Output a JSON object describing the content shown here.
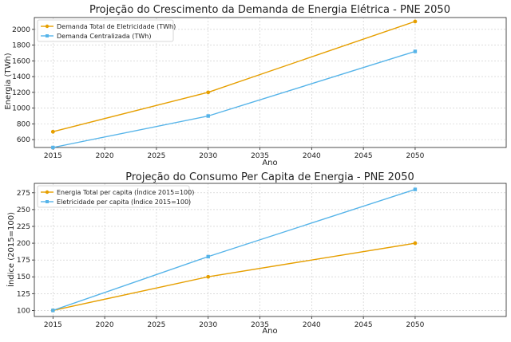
{
  "chart_data": [
    {
      "type": "line",
      "title": "Projeção do Crescimento da Demanda de Energia Elétrica - PNE 2050",
      "xlabel": "Ano",
      "ylabel": "Energia (TWh)",
      "xlim": [
        2013.2,
        2058.8
      ],
      "ylim": [
        500,
        2150
      ],
      "xticks": [
        2015,
        2020,
        2025,
        2030,
        2035,
        2040,
        2045,
        2050
      ],
      "yticks": [
        600,
        800,
        1000,
        1200,
        1400,
        1600,
        1800,
        2000
      ],
      "grid": true,
      "legend_position": "upper-left",
      "series": [
        {
          "name": "Demanda Total de Eletricidade (TWh)",
          "color": "#E69F00",
          "marker": "circle",
          "x": [
            2015,
            2030,
            2050
          ],
          "y": [
            700,
            1200,
            2100
          ]
        },
        {
          "name": "Demanda Centralizada (TWh)",
          "color": "#56B4E9",
          "marker": "square",
          "x": [
            2015,
            2030,
            2050
          ],
          "y": [
            500,
            900,
            1720
          ]
        }
      ]
    },
    {
      "type": "line",
      "title": "Projeção do Consumo Per Capita de Energia - PNE 2050",
      "xlabel": "Ano",
      "ylabel": "Índice (2015=100)",
      "xlim": [
        2013.2,
        2058.8
      ],
      "ylim": [
        91,
        289
      ],
      "xticks": [
        2015,
        2020,
        2025,
        2030,
        2035,
        2040,
        2045,
        2050
      ],
      "yticks": [
        100,
        125,
        150,
        175,
        200,
        225,
        250,
        275
      ],
      "grid": true,
      "legend_position": "upper-left",
      "series": [
        {
          "name": "Energia Total per capita (Índice 2015=100)",
          "color": "#E69F00",
          "marker": "circle",
          "x": [
            2015,
            2030,
            2050
          ],
          "y": [
            100,
            150,
            200
          ]
        },
        {
          "name": "Eletricidade per capita (Índice 2015=100)",
          "color": "#56B4E9",
          "marker": "square",
          "x": [
            2015,
            2030,
            2050
          ],
          "y": [
            100,
            180,
            280
          ]
        }
      ]
    }
  ]
}
